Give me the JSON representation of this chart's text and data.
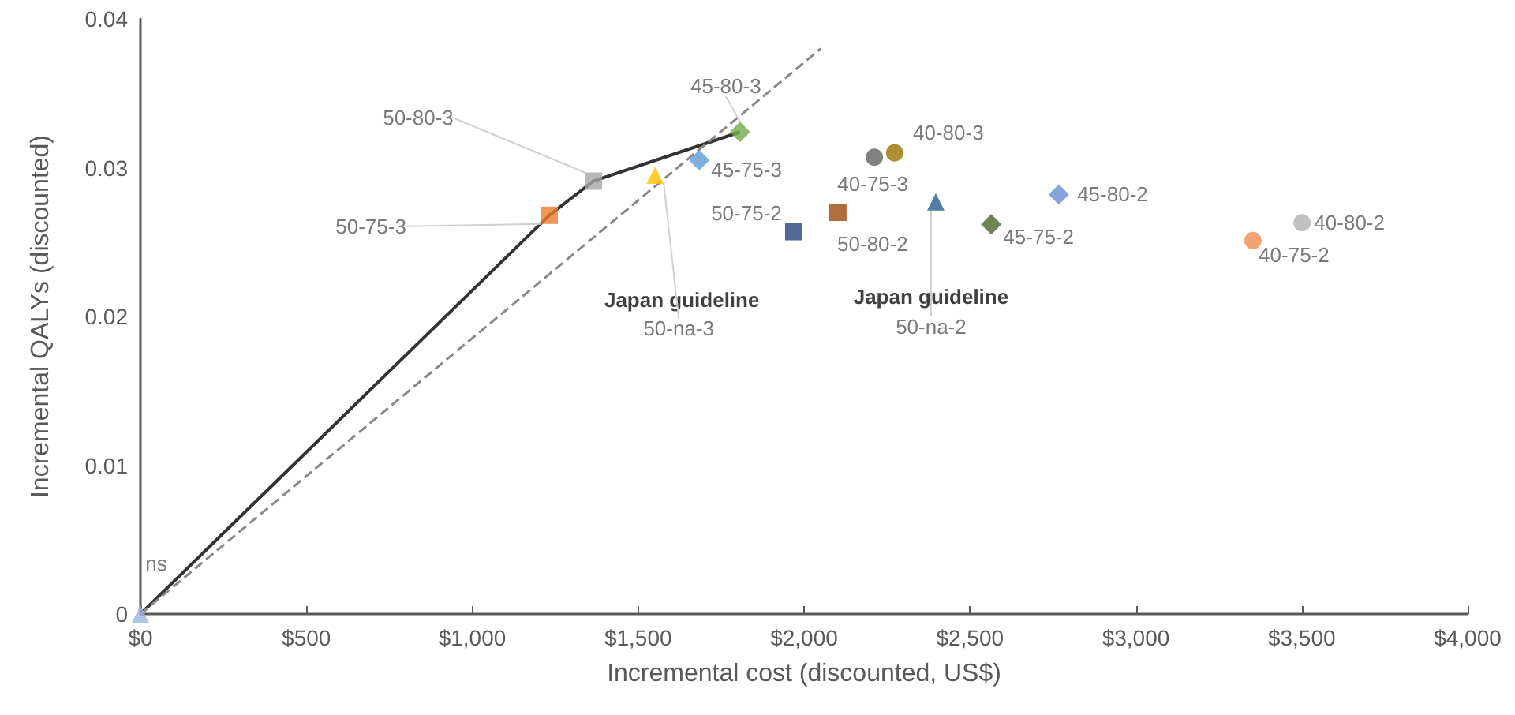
{
  "chart_data": {
    "type": "scatter",
    "xlabel": "Incremental cost (discounted, US$)",
    "ylabel": "Incremental QALYs (discounted)",
    "xlim": [
      0,
      4000
    ],
    "xticks": [
      {
        "value": 0,
        "label": "$0"
      },
      {
        "value": 500,
        "label": "$500"
      },
      {
        "value": 1000,
        "label": "$1,000"
      },
      {
        "value": 1500,
        "label": "$1,500"
      },
      {
        "value": 2000,
        "label": "$2,000"
      },
      {
        "value": 2500,
        "label": "$2,500"
      },
      {
        "value": 3000,
        "label": "$3,000"
      },
      {
        "value": 3500,
        "label": "$3,500"
      },
      {
        "value": 4000,
        "label": "$4,000"
      }
    ],
    "ylim": [
      0,
      0.04
    ],
    "yticks": [
      0,
      0.01,
      0.02,
      0.03,
      0.04
    ],
    "grid": false,
    "legend": false,
    "series": [
      {
        "name": "ns",
        "color": "#9db4dc",
        "marker": "triangle",
        "x": [
          0
        ],
        "values": [
          0
        ]
      },
      {
        "name": "50-75-3",
        "color": "#ed7d31",
        "marker": "square",
        "x": [
          1232
        ],
        "values": [
          0.0268
        ]
      },
      {
        "name": "50-80-3",
        "color": "#a5a5a5",
        "marker": "square",
        "x": [
          1365
        ],
        "values": [
          0.0291
        ]
      },
      {
        "name": "50-na-3",
        "color": "#ffc000",
        "marker": "triangle",
        "x": [
          1551
        ],
        "values": [
          0.0295
        ]
      },
      {
        "name": "45-75-3",
        "color": "#5b9bd5",
        "marker": "diamond",
        "x": [
          1684
        ],
        "values": [
          0.0305
        ]
      },
      {
        "name": "45-80-3",
        "color": "#70ad47",
        "marker": "diamond",
        "x": [
          1807
        ],
        "values": [
          0.0324
        ]
      },
      {
        "name": "50-75-2",
        "color": "#264478",
        "marker": "square",
        "x": [
          1969
        ],
        "values": [
          0.0257
        ]
      },
      {
        "name": "50-80-2",
        "color": "#9e480e",
        "marker": "square",
        "x": [
          2102
        ],
        "values": [
          0.027
        ]
      },
      {
        "name": "40-75-3",
        "color": "#636363",
        "marker": "circle",
        "x": [
          2212
        ],
        "values": [
          0.0307
        ]
      },
      {
        "name": "40-80-3",
        "color": "#997300",
        "marker": "circle",
        "x": [
          2273
        ],
        "values": [
          0.031
        ]
      },
      {
        "name": "50-na-2",
        "color": "#255e91",
        "marker": "triangle",
        "x": [
          2397
        ],
        "values": [
          0.0277
        ]
      },
      {
        "name": "45-75-2",
        "color": "#43682b",
        "marker": "diamond",
        "x": [
          2564
        ],
        "values": [
          0.0262
        ]
      },
      {
        "name": "45-80-2",
        "color": "#698ed0",
        "marker": "diamond",
        "x": [
          2768
        ],
        "values": [
          0.0282
        ]
      },
      {
        "name": "40-80-2",
        "color": "#b0b0b0",
        "marker": "circle",
        "x": [
          3501
        ],
        "values": [
          0.0263
        ]
      },
      {
        "name": "40-75-2",
        "color": "#f08c4f",
        "marker": "circle",
        "x": [
          3353
        ],
        "values": [
          0.0251
        ]
      },
      {
        "type": "line",
        "color": "#333333",
        "marker": "none",
        "line_style": "solid",
        "x": [
          0,
          1232,
          1365,
          1807
        ],
        "values": [
          0,
          0.0268,
          0.0291,
          0.0324
        ]
      },
      {
        "type": "line",
        "color": "#888888",
        "marker": "none",
        "line_style": "dashed",
        "x": [
          0,
          2050
        ],
        "values": [
          0,
          0.038
        ]
      }
    ],
    "annotations": [
      {
        "text": "Japan guideline",
        "x": 1551,
        "y": 0.0295
      },
      {
        "text": "Japan guideline",
        "x": 2397,
        "y": 0.0277
      }
    ]
  }
}
